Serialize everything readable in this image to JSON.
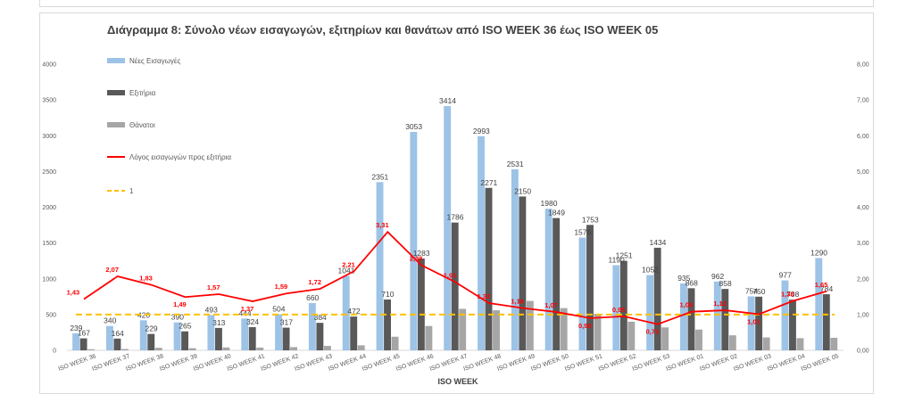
{
  "chart_data": {
    "type": "bar",
    "title": "Διάγραμμα 8: Σύνολο νέων εισαγωγών, εξιτηρίων και θανάτων από ISO WEEK 36 έως ISO WEEK 05",
    "xlabel": "ISO WEEK",
    "ylabel": "",
    "ylim": [
      0,
      4000
    ],
    "y2lim": [
      0,
      8
    ],
    "yticks": [
      "0",
      "500",
      "1000",
      "1500",
      "2000",
      "2500",
      "3000",
      "3500",
      "4000"
    ],
    "y2ticks": [
      "0,00",
      "1,00",
      "2,00",
      "3,00",
      "4,00",
      "5,00",
      "6,00",
      "7,00",
      "8,00"
    ],
    "categories": [
      "ISO WEEK 36",
      "ISO WEEK 37",
      "ISO WEEK 38",
      "ISO WEEK 39",
      "ISO WEEK 40",
      "ISO WEEK 41",
      "ISO WEEK 42",
      "ISO WEEK 43",
      "ISO WEEK 44",
      "ISO WEEK 45",
      "ISO WEEK 46",
      "ISO WEEK 47",
      "ISO WEEK 48",
      "ISO WEEK 49",
      "ISO WEEK 50",
      "ISO WEEK 51",
      "ISO WEEK 52",
      "ISO WEEK 53",
      "ISO WEEK 01",
      "ISO WEEK 02",
      "ISO WEEK 03",
      "ISO WEEK 04",
      "ISO WEEK 05"
    ],
    "series": [
      {
        "name": "Νέες Εισαγωγές",
        "color": "#9dc3e6",
        "values": [
          239,
          340,
          420,
          390,
          493,
          444,
          504,
          660,
          1041,
          2351,
          3053,
          3414,
          2993,
          2531,
          1980,
          1576,
          1190,
          1052,
          935,
          962,
          754,
          977,
          1290
        ],
        "labels": [
          "239",
          "340",
          "420",
          "390",
          "493",
          "444",
          "504",
          "660",
          "1041",
          "2351",
          "3053",
          "3414",
          "2993",
          "2531",
          "1980",
          "1576",
          "1190",
          "1052",
          "935",
          "962",
          "754",
          "977",
          "1290"
        ]
      },
      {
        "name": "Εξιτήρια",
        "color": "#595959",
        "values": [
          167,
          164,
          229,
          265,
          313,
          324,
          317,
          384,
          472,
          710,
          1283,
          1786,
          2271,
          2150,
          1849,
          1753,
          1251,
          1434,
          868,
          858,
          750,
          708,
          784
        ],
        "labels": [
          "167",
          "164",
          "229",
          "265",
          "313",
          "324",
          "317",
          "384",
          "472",
          "710",
          "1283",
          "1786",
          "2271",
          "2150",
          "1849",
          "1753",
          "1251",
          "1434",
          "868",
          "858",
          "750",
          "708",
          "784"
        ]
      },
      {
        "name": "Θάνατοι",
        "color": "#a6a6a6",
        "values": [
          15,
          18,
          35,
          30,
          40,
          38,
          45,
          62,
          70,
          190,
          340,
          580,
          560,
          690,
          590,
          510,
          400,
          320,
          290,
          210,
          180,
          170,
          175
        ]
      },
      {
        "name": "Λόγος εισαγωγών προς εξιτήρια",
        "color": "#ff0000",
        "axis": "right",
        "values": [
          1.43,
          2.07,
          1.83,
          1.49,
          1.57,
          1.37,
          1.59,
          1.72,
          2.21,
          3.31,
          2.38,
          1.91,
          1.32,
          1.18,
          1.07,
          0.9,
          0.95,
          0.73,
          1.08,
          1.12,
          1.01,
          1.38,
          1.65
        ],
        "labels": [
          "1,43",
          "2,07",
          "1,83",
          "1,49",
          "1,57",
          "1,37",
          "1,59",
          "1,72",
          "2,21",
          "3,31",
          "2,38",
          "1,91",
          "1,32",
          "1,18",
          "1,07",
          "0,90",
          "0,95",
          "0,73",
          "1,08",
          "1,12",
          "1,01",
          "1,38",
          "1,65"
        ]
      },
      {
        "name": "1",
        "color": "#ffc000",
        "axis": "right",
        "value": 1
      }
    ],
    "legend": "top-left",
    "grid": false
  }
}
